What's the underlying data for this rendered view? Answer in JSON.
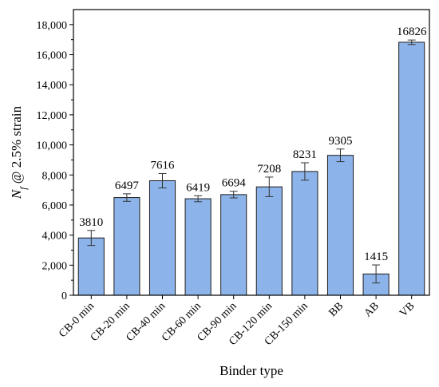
{
  "chart_data": {
    "type": "bar",
    "title": "",
    "xlabel": "Binder type",
    "ylabel": {
      "main": "N",
      "sub": "f",
      "rest": " @ 2.5% strain"
    },
    "categories": [
      "CB-0 min",
      "CB-20 min",
      "CB-40 min",
      "CB-60 min",
      "CB-90 min",
      "CB-120 min",
      "CB-150 min",
      "BB",
      "AB",
      "VB"
    ],
    "values": [
      3810,
      6497,
      7616,
      6419,
      6694,
      7208,
      8231,
      9305,
      1415,
      16826
    ],
    "data_labels": [
      "3810",
      "6497",
      "7616",
      "6419",
      "6694",
      "7208",
      "8231",
      "9305",
      "1415",
      "16826"
    ],
    "errors": [
      500,
      250,
      480,
      200,
      220,
      650,
      580,
      420,
      600,
      150
    ],
    "ylim": [
      0,
      19000
    ],
    "yticks": [
      0,
      2000,
      4000,
      6000,
      8000,
      10000,
      12000,
      14000,
      16000,
      18000
    ],
    "ytick_labels": [
      "0",
      "2,000",
      "4,000",
      "6,000",
      "8,000",
      "10,000",
      "12,000",
      "14,000",
      "16,000",
      "18,000"
    ],
    "bar_color": "#8db4ea",
    "grid": false,
    "legend": "none"
  }
}
